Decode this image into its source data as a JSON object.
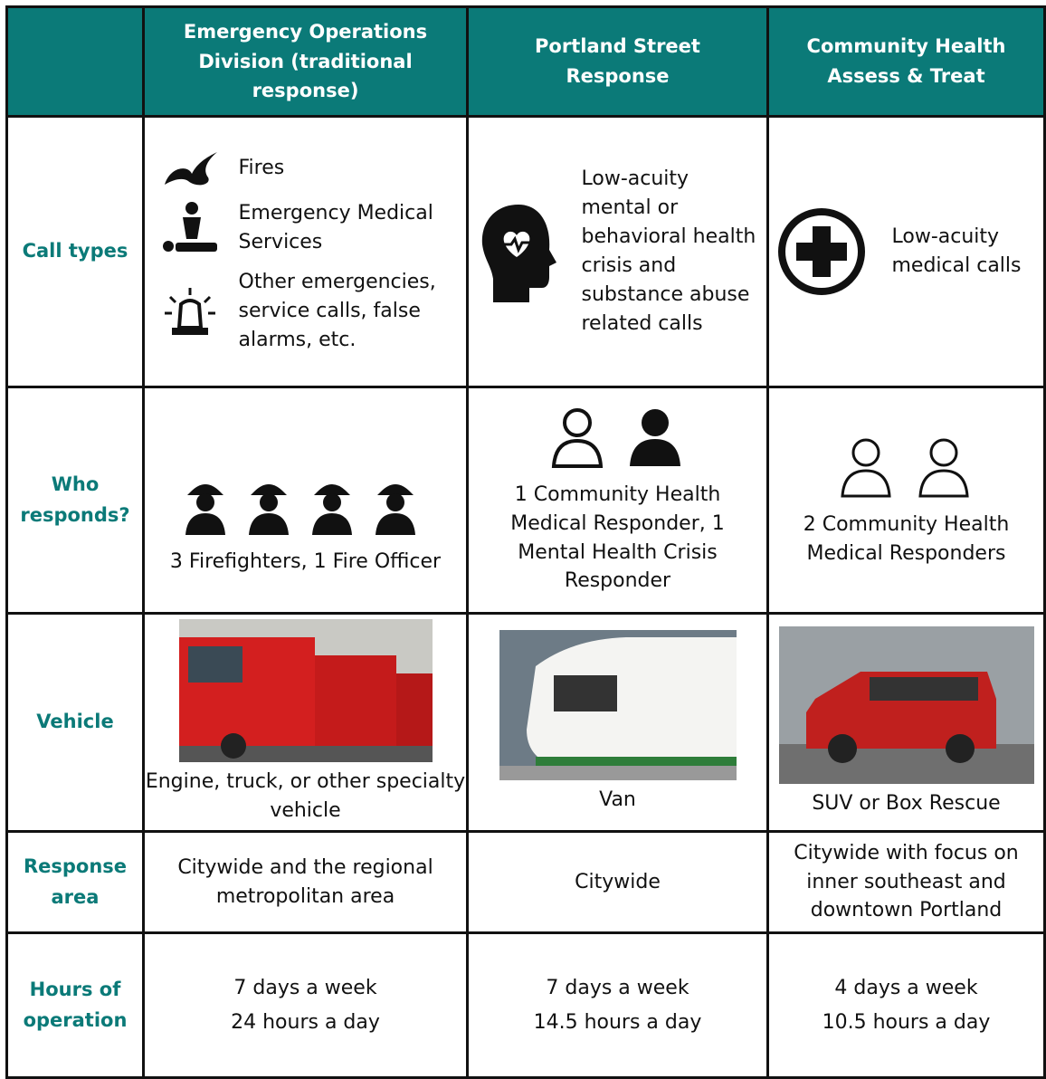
{
  "header": {
    "columns": [
      "Emergency Operations Division (traditional response)",
      "Portland Street Response",
      "Community Health Assess & Treat"
    ]
  },
  "rows": [
    {
      "label": "Call types",
      "cells": [
        [
          "Fires",
          "Emergency Medical Services",
          "Other emergencies, service calls, false alarms, etc."
        ],
        "Low-acuity mental or behavioral health crisis and substance abuse related calls",
        "Low-acuity medical calls"
      ]
    },
    {
      "label": "Who responds?",
      "cells": [
        "3 Firefighters, 1 Fire Officer",
        "1 Community Health Medical Responder, 1 Mental Health Crisis Responder",
        "2 Community Health Medical Responders"
      ]
    },
    {
      "label": "Vehicle",
      "cells": [
        "Engine, truck, or other specialty vehicle",
        "Van",
        "SUV or Box Rescue"
      ]
    },
    {
      "label": "Response area",
      "cells": [
        "Citywide and the regional metropolitan area",
        "Citywide",
        "Citywide with focus on inner southeast and downtown Portland"
      ]
    },
    {
      "label": "Hours of operation",
      "cells": [
        [
          "7 days a week",
          "24 hours a day"
        ],
        [
          "7 days a week",
          "14.5 hours a day"
        ],
        [
          "4 days a week",
          "10.5 hours a day"
        ]
      ]
    }
  ]
}
